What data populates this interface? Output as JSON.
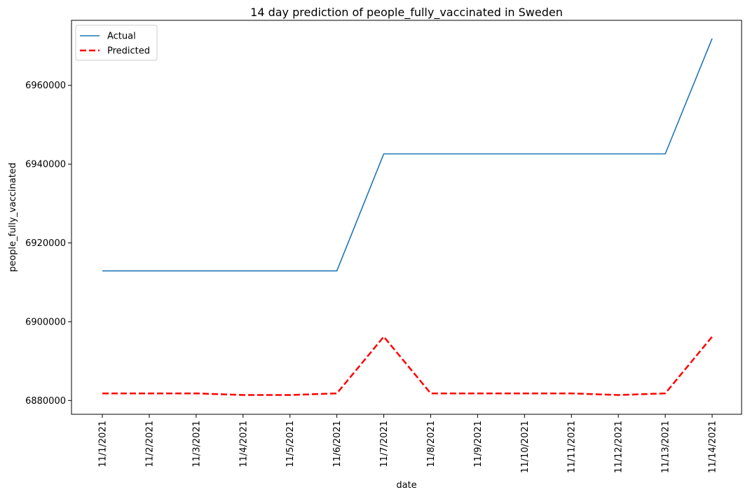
{
  "chart_data": {
    "type": "line",
    "title": "14 day prediction of people_fully_vaccinated in Sweden",
    "xlabel": "date",
    "ylabel": "people_fully_vaccinated",
    "categories": [
      "11/1/2021",
      "11/2/2021",
      "11/3/2021",
      "11/4/2021",
      "11/5/2021",
      "11/6/2021",
      "11/7/2021",
      "11/8/2021",
      "11/9/2021",
      "11/10/2021",
      "11/11/2021",
      "11/12/2021",
      "11/13/2021",
      "11/14/2021"
    ],
    "yticks": [
      6880000,
      6900000,
      6920000,
      6940000,
      6960000
    ],
    "ylim": [
      6876500,
      6976500
    ],
    "grid": false,
    "legend_position": "upper-left",
    "series": [
      {
        "name": "Actual",
        "color": "#1f77b4",
        "style": "solid",
        "values": [
          6912900,
          6912900,
          6912900,
          6912900,
          6912900,
          6912900,
          6942600,
          6942600,
          6942600,
          6942600,
          6942600,
          6942600,
          6942600,
          6971900
        ]
      },
      {
        "name": "Predicted",
        "color": "#ff0000",
        "style": "dashed",
        "values": [
          6881800,
          6881800,
          6881800,
          6881400,
          6881400,
          6881800,
          6896200,
          6881800,
          6881800,
          6881800,
          6881800,
          6881400,
          6881800,
          6896200
        ]
      }
    ]
  }
}
